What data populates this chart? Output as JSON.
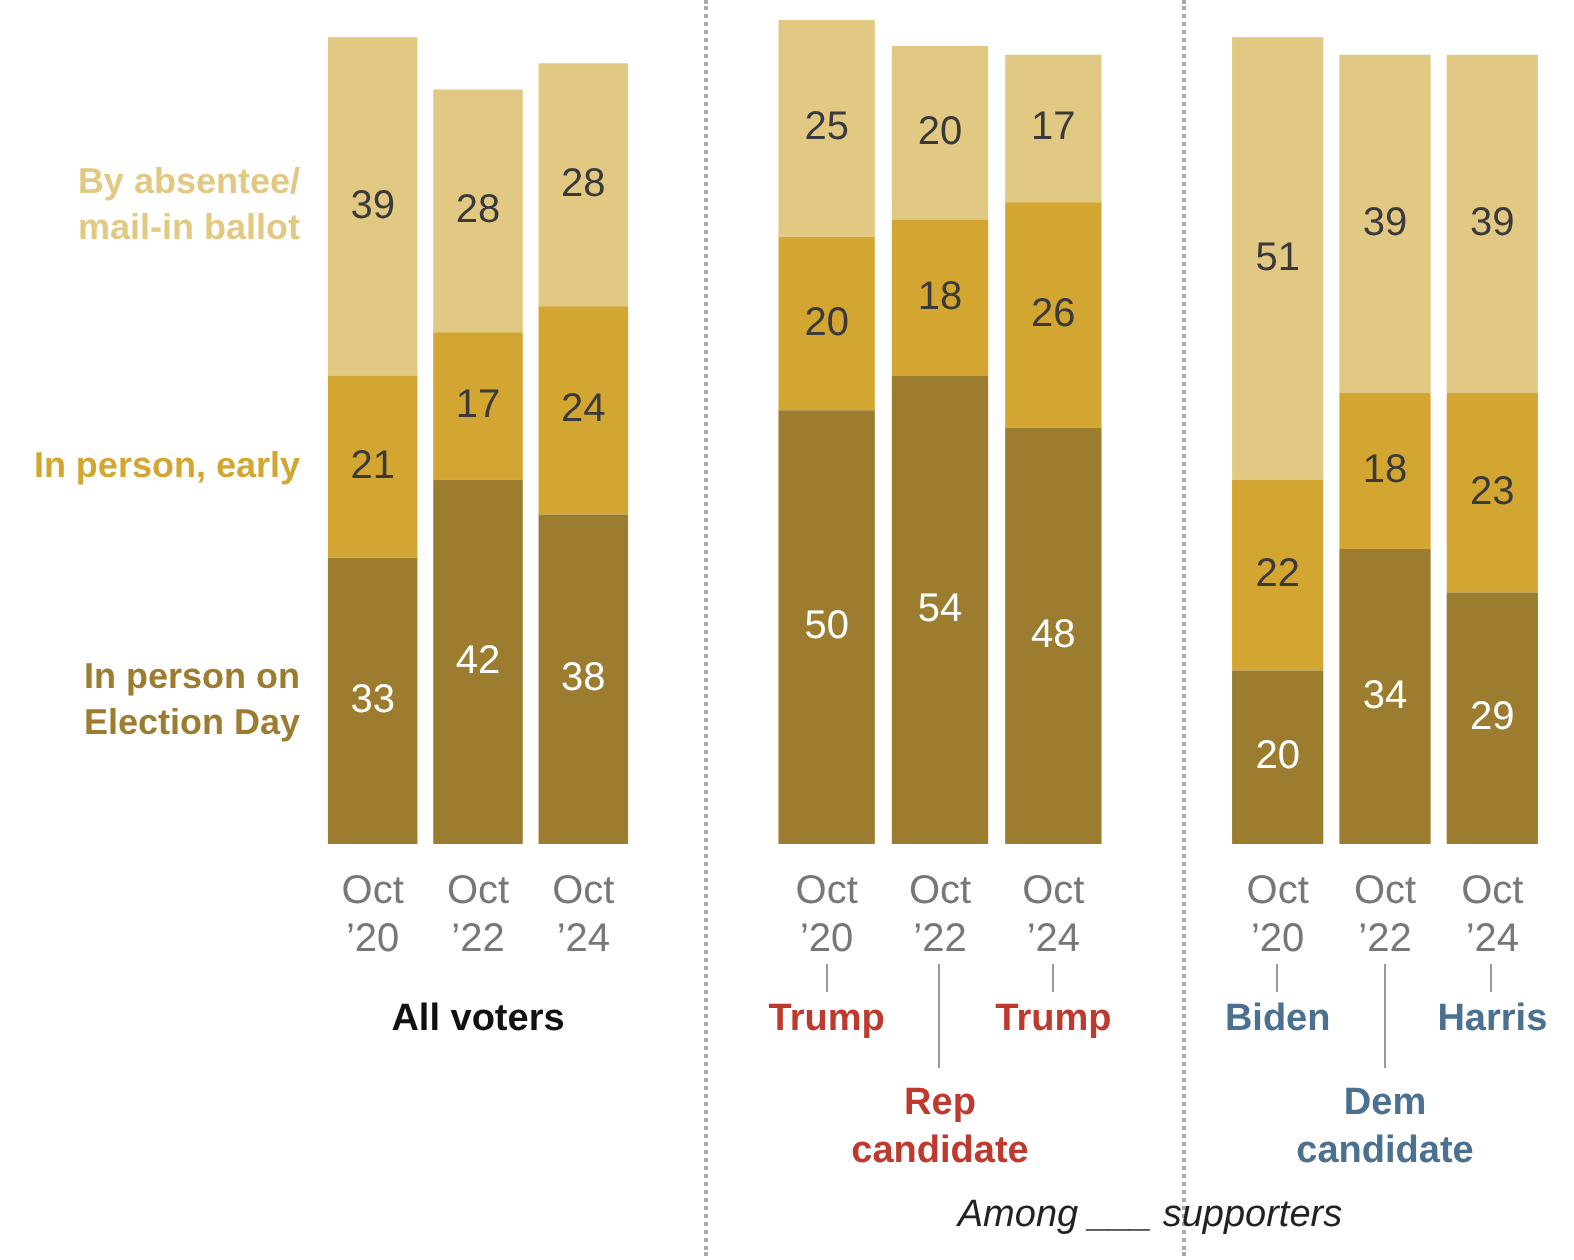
{
  "chart_data": [
    {
      "type": "bar",
      "stacked": true,
      "data_labels": true,
      "tick_labels": "x",
      "categories": [
        "Oct ’20",
        "Oct ’22",
        "Oct ’24"
      ],
      "series": [
        {
          "name": "In person on Election Day",
          "color": "#9c7c2f",
          "values": [
            33,
            42,
            38
          ]
        },
        {
          "name": "In person, early",
          "color": "#d2a631",
          "values": [
            21,
            17,
            24
          ]
        },
        {
          "name": "By absentee/mail-in ballot",
          "color": "#e2c983",
          "values": [
            39,
            28,
            28
          ]
        }
      ],
      "annotations": [
        "All voters"
      ]
    },
    {
      "type": "bar",
      "stacked": true,
      "data_labels": true,
      "tick_labels": "x",
      "categories": [
        "Oct ’20",
        "Oct ’22",
        "Oct ’24"
      ],
      "series": [
        {
          "color": "#9c7c2f",
          "values": [
            50,
            54,
            48
          ]
        },
        {
          "color": "#d2a631",
          "values": [
            20,
            18,
            26
          ]
        },
        {
          "color": "#e2c983",
          "values": [
            25,
            20,
            17
          ]
        }
      ],
      "annotations": [
        {
          "text": "Trump",
          "x": "Oct ’20"
        },
        {
          "text": "Rep candidate",
          "x": "Oct ’22"
        },
        {
          "text": "Trump",
          "x": "Oct ’24"
        },
        "Among ___ supporters"
      ]
    },
    {
      "type": "bar",
      "stacked": true,
      "data_labels": true,
      "tick_labels": "x",
      "categories": [
        "Oct ’20",
        "Oct ’22",
        "Oct ’24"
      ],
      "series": [
        {
          "color": "#9c7c2f",
          "values": [
            20,
            34,
            29
          ]
        },
        {
          "color": "#d2a631",
          "values": [
            22,
            18,
            23
          ]
        },
        {
          "color": "#e2c983",
          "values": [
            51,
            39,
            39
          ]
        }
      ],
      "annotations": [
        {
          "text": "Biden",
          "x": "Oct ’20"
        },
        {
          "text": "Dem candidate",
          "x": "Oct ’22"
        },
        {
          "text": "Harris",
          "x": "Oct ’24"
        }
      ]
    }
  ]
}
